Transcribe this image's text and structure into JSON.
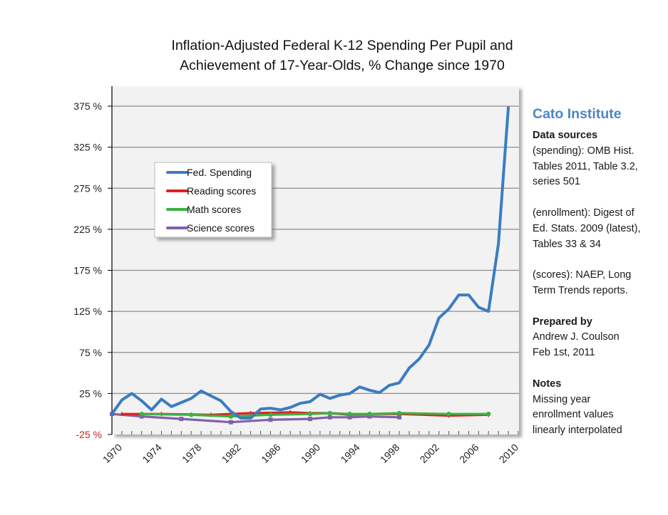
{
  "chart_data": {
    "type": "line",
    "title": "Inflation-Adjusted Federal K-12 Spending Per Pupil and Achievement of 17-Year-Olds, % Change since 1970",
    "title_lines": [
      "Inflation-Adjusted Federal K-12 Spending Per Pupil and",
      "Achievement of 17-Year-Olds, % Change since 1970"
    ],
    "xlabel": "",
    "ylabel": "",
    "xlim": [
      1970,
      2011
    ],
    "ylim": [
      -25,
      400
    ],
    "grid": true,
    "legend_position": "upper-left",
    "y_ticks": [
      -25,
      25,
      75,
      125,
      175,
      225,
      275,
      325,
      375
    ],
    "y_tick_labels": [
      "-25 %",
      "25 %",
      "75 %",
      "125 %",
      "175 %",
      "225 %",
      "275 %",
      "325 %",
      "375 %"
    ],
    "x_ticks": [
      1970,
      1974,
      1978,
      1982,
      1986,
      1990,
      1994,
      1998,
      2002,
      2006,
      2010
    ],
    "x_tick_labels": [
      "1970",
      "1974",
      "1978",
      "1982",
      "1986",
      "1990",
      "1994",
      "1998",
      "2002",
      "2006",
      "2010"
    ],
    "series": [
      {
        "name": "Fed. Spending",
        "color": "#3a7cc2",
        "x": [
          1970,
          1971,
          1972,
          1973,
          1974,
          1975,
          1976,
          1977,
          1978,
          1979,
          1980,
          1981,
          1982,
          1983,
          1984,
          1985,
          1986,
          1987,
          1988,
          1989,
          1990,
          1991,
          1992,
          1993,
          1994,
          1995,
          1996,
          1997,
          1998,
          1999,
          2000,
          2001,
          2002,
          2003,
          2004,
          2005,
          2006,
          2007,
          2008,
          2009,
          2010
        ],
        "values": [
          0,
          17,
          25,
          16,
          5,
          18,
          9,
          14,
          19,
          28,
          22,
          16,
          3,
          -5,
          -5,
          6,
          7,
          5,
          8,
          13,
          15,
          24,
          19,
          23,
          25,
          33,
          29,
          26,
          35,
          38,
          56,
          67,
          84,
          117,
          128,
          145,
          145,
          130,
          125,
          207,
          373
        ]
      },
      {
        "name": "Reading scores",
        "color": "#e02020",
        "x": [
          1971,
          1975,
          1980,
          1984,
          1988,
          1990,
          1992,
          1994,
          1996,
          1999,
          2004,
          2008
        ],
        "values": [
          0,
          0,
          -1,
          1,
          2,
          1,
          1,
          -1,
          0,
          0,
          -2,
          -1
        ]
      },
      {
        "name": "Math scores",
        "color": "#3cb043",
        "x": [
          1973,
          1978,
          1982,
          1986,
          1990,
          1992,
          1994,
          1996,
          1999,
          2004,
          2008
        ],
        "values": [
          0,
          -1,
          -3,
          -1,
          0,
          1,
          0,
          0,
          1,
          0,
          0
        ]
      },
      {
        "name": "Science scores",
        "color": "#7f62a8",
        "x": [
          1970,
          1973,
          1977,
          1982,
          1986,
          1990,
          1992,
          1994,
          1996,
          1999
        ],
        "values": [
          0,
          -3,
          -6,
          -10,
          -7,
          -6,
          -4,
          -4,
          -3,
          -4
        ]
      }
    ]
  },
  "sidebar": {
    "org": "Cato Institute",
    "sources_heading": "Data sources",
    "sources": [
      [
        "(spending): OMB Hist.",
        "Tables 2011, Table 3.2,",
        "series 501"
      ],
      [
        "(enrollment): Digest of",
        "Ed. Stats. 2009 (latest),",
        "Tables 33 & 34"
      ],
      [
        "(scores): NAEP, Long",
        "Term Trends reports."
      ]
    ],
    "prepared_heading": "Prepared by",
    "prepared_lines": [
      "Andrew J. Coulson",
      "Feb 1st, 2011"
    ],
    "notes_heading": "Notes",
    "notes_lines": [
      "Missing year",
      "enrollment values",
      "linearly interpolated"
    ]
  },
  "colors": {
    "plot_bg": "#f2f2f2",
    "grid": "#8c8c8c",
    "negative_tick": "#d02020",
    "accent": "#4f86c6"
  }
}
